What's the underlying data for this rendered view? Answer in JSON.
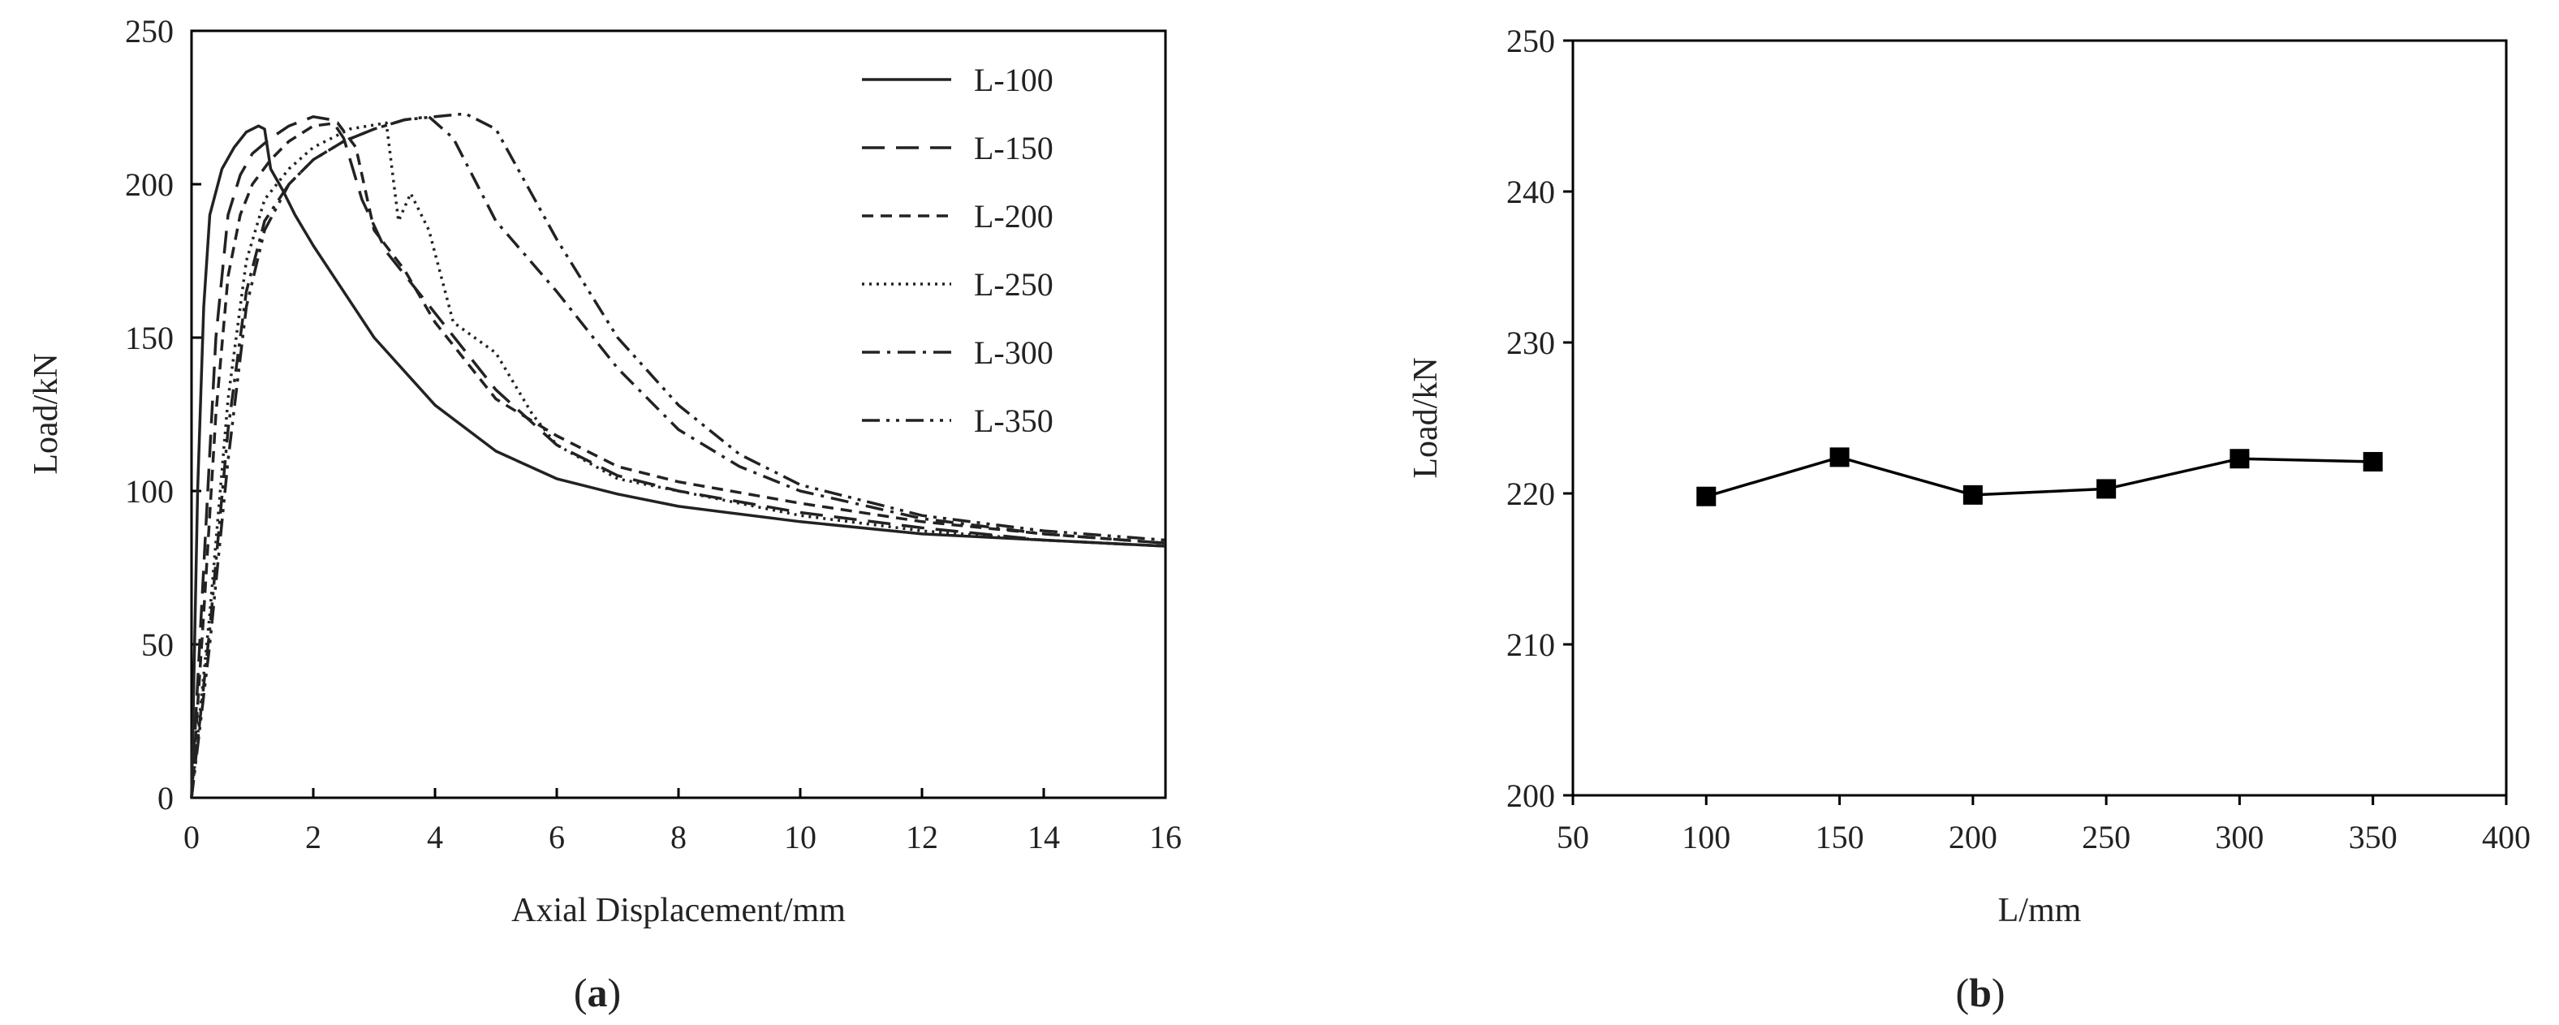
{
  "chart_data": [
    {
      "panel": "a",
      "type": "line",
      "xlabel": "Axial Displacement/mm",
      "ylabel": "Load/kN",
      "xlim": [
        0,
        16
      ],
      "ylim": [
        0,
        250
      ],
      "xticks": [
        "0",
        "2",
        "4",
        "6",
        "8",
        "10",
        "12",
        "14",
        "16"
      ],
      "yticks": [
        "0",
        "50",
        "100",
        "150",
        "200",
        "250"
      ],
      "grid": false,
      "legend_position": "top-right",
      "series": [
        {
          "name": "L-100",
          "dash": "solid",
          "x": [
            0,
            0.1,
            0.2,
            0.3,
            0.5,
            0.7,
            0.9,
            1.1,
            1.2,
            1.3,
            1.5,
            1.7,
            2,
            2.5,
            3,
            4,
            5,
            6,
            7,
            8,
            10,
            12,
            14,
            16
          ],
          "y": [
            0,
            100,
            160,
            190,
            205,
            212,
            217,
            219,
            218,
            205,
            198,
            190,
            180,
            165,
            150,
            128,
            113,
            104,
            99,
            95,
            90,
            86,
            84,
            82
          ]
        },
        {
          "name": "L-150",
          "dash": "long-dash",
          "x": [
            0,
            0.2,
            0.4,
            0.6,
            0.8,
            1.0,
            1.3,
            1.6,
            2.0,
            2.3,
            2.5,
            2.8,
            3.2,
            4,
            5,
            6,
            7,
            8,
            10,
            12,
            14,
            16
          ],
          "y": [
            0,
            75,
            150,
            190,
            203,
            210,
            215,
            219,
            222,
            221,
            215,
            195,
            178,
            158,
            133,
            115,
            105,
            100,
            93,
            88,
            84,
            82
          ]
        },
        {
          "name": "L-200",
          "dash": "short-dash",
          "x": [
            0,
            0.2,
            0.4,
            0.6,
            0.8,
            1.0,
            1.3,
            1.6,
            2.0,
            2.4,
            2.7,
            3.0,
            3.5,
            4,
            5,
            6,
            7,
            8,
            10,
            12,
            14,
            16
          ],
          "y": [
            0,
            60,
            125,
            170,
            190,
            200,
            208,
            214,
            219,
            220,
            212,
            185,
            172,
            155,
            130,
            118,
            108,
            103,
            96,
            90,
            86,
            83
          ]
        },
        {
          "name": "L-250",
          "dash": "dotted",
          "x": [
            0,
            0.3,
            0.6,
            0.9,
            1.2,
            1.6,
            2.0,
            2.6,
            3.2,
            3.4,
            3.6,
            3.9,
            4.3,
            5,
            5.6,
            6,
            7,
            8,
            10,
            12,
            14,
            16
          ],
          "y": [
            0,
            60,
            130,
            175,
            195,
            205,
            212,
            218,
            220,
            188,
            197,
            185,
            155,
            145,
            125,
            115,
            104,
            100,
            92,
            87,
            84,
            82
          ]
        },
        {
          "name": "L-300",
          "dash": "dash-dot",
          "x": [
            0,
            0.3,
            0.6,
            0.9,
            1.2,
            1.6,
            2.0,
            2.5,
            3.0,
            3.5,
            3.9,
            4.3,
            5,
            6,
            7,
            8,
            9,
            10,
            12,
            14,
            16
          ],
          "y": [
            0,
            55,
            120,
            165,
            188,
            200,
            208,
            214,
            218,
            221,
            222,
            215,
            188,
            165,
            140,
            120,
            108,
            100,
            91,
            86,
            83
          ]
        },
        {
          "name": "L-350",
          "dash": "dash-dot-dot",
          "x": [
            0,
            0.3,
            0.6,
            0.9,
            1.2,
            1.6,
            2.0,
            2.5,
            3.0,
            3.5,
            4.0,
            4.5,
            5.0,
            5.5,
            6,
            7,
            8,
            9,
            10,
            12,
            14,
            16
          ],
          "y": [
            0,
            50,
            110,
            160,
            185,
            200,
            208,
            214,
            218,
            221,
            222,
            223,
            218,
            200,
            182,
            150,
            128,
            112,
            102,
            92,
            87,
            84
          ]
        }
      ]
    },
    {
      "panel": "b",
      "type": "line",
      "xlabel": "L/mm",
      "ylabel": "Load/kN",
      "xlim": [
        50,
        400
      ],
      "ylim": [
        200,
        250
      ],
      "xticks": [
        "50",
        "100",
        "150",
        "200",
        "250",
        "300",
        "350",
        "400"
      ],
      "yticks": [
        "200",
        "210",
        "220",
        "230",
        "240",
        "250"
      ],
      "grid": false,
      "marker": "square",
      "x": [
        100,
        150,
        200,
        250,
        300,
        350
      ],
      "y": [
        219.8,
        222.4,
        219.9,
        220.3,
        222.3,
        222.1
      ]
    }
  ],
  "labels": {
    "a_open": "(",
    "a_letter": "a",
    "a_close": ")",
    "b_open": "(",
    "b_letter": "b",
    "b_close": ")"
  }
}
